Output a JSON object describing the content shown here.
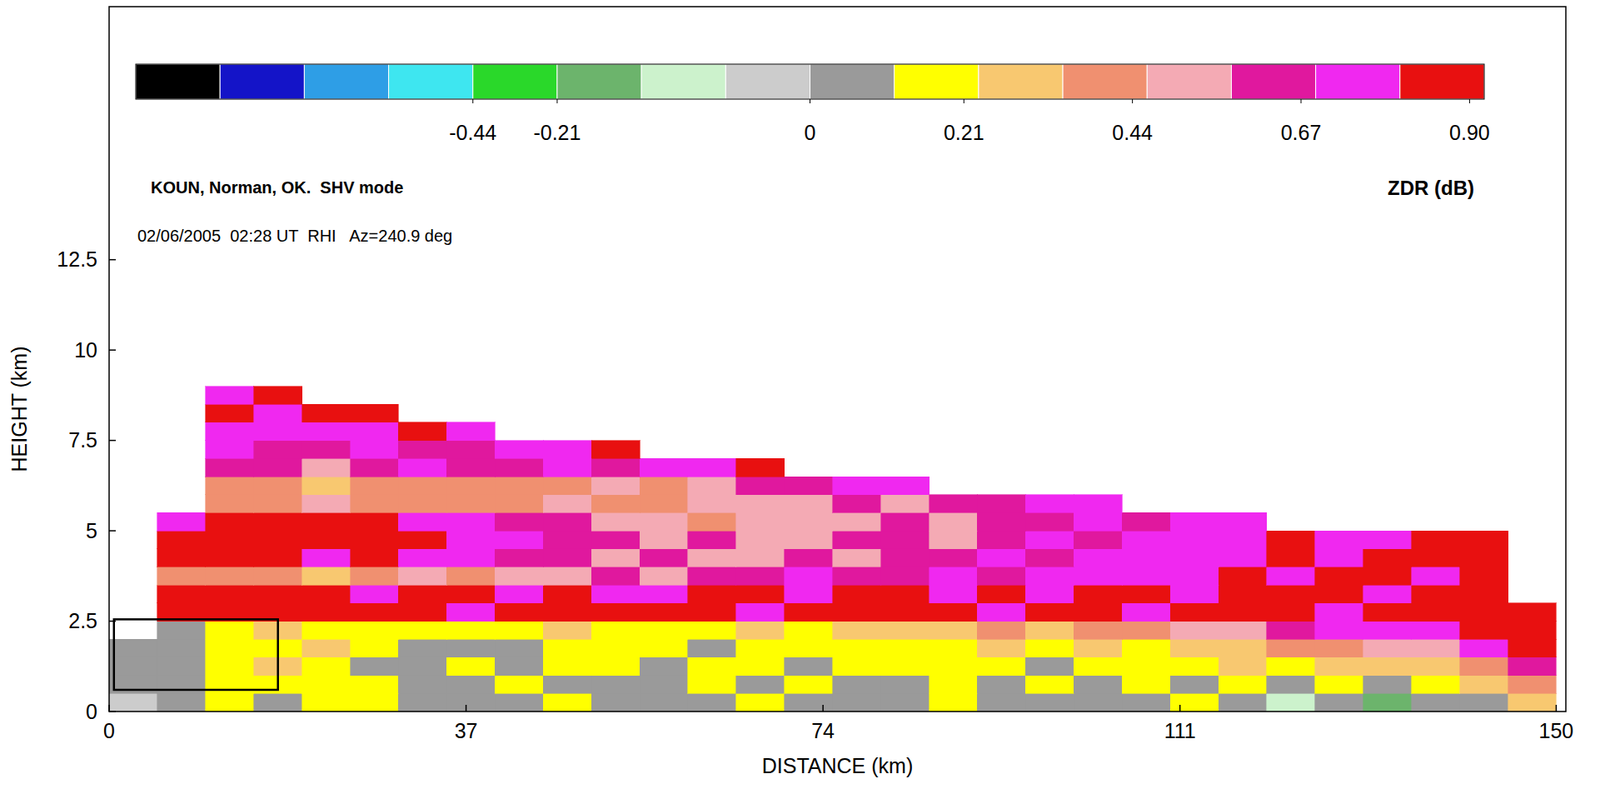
{
  "chart_data": {
    "type": "heatmap",
    "title": "KOUN, Norman, OK.  SHV mode",
    "subtitle": "02/06/2005  02:28 UT  RHI   Az=240.9 deg",
    "x_label": "DISTANCE (km)",
    "y_label": "HEIGHT (km)",
    "xlim": [
      0,
      151
    ],
    "ylim": [
      0,
      19.5
    ],
    "xticks": [
      0,
      37,
      74,
      111,
      150
    ],
    "yticks": [
      0,
      2.5,
      5,
      7.5,
      10,
      12.5
    ],
    "x_edges": [
      0,
      5,
      10,
      15,
      20,
      25,
      30,
      35,
      40,
      45,
      50,
      55,
      60,
      65,
      70,
      75,
      80,
      85,
      90,
      95,
      100,
      105,
      110,
      115,
      120,
      125,
      130,
      135,
      140,
      145,
      150
    ],
    "y_edges": [
      0,
      0.5,
      1,
      1.5,
      2,
      2.5,
      3,
      3.5,
      4,
      4.5,
      5,
      5.5,
      6,
      6.5,
      7,
      7.5,
      8,
      8.5,
      9
    ],
    "cells": [
      [
        -0.03,
        0.1,
        0.15,
        0.05,
        0.15,
        0.2,
        0.1,
        0.05,
        0.1,
        0.15,
        0.1,
        0.05,
        0.1,
        0.15,
        0.1,
        0.05,
        0.1,
        0.15,
        0.05,
        0.1,
        0.05,
        0.1,
        0.15,
        0.05,
        -0.1,
        0.0,
        -0.15,
        0.05,
        0.1,
        0.3
      ],
      [
        0.05,
        0.1,
        0.2,
        0.15,
        0.2,
        0.15,
        0.1,
        0.05,
        0.15,
        0.1,
        0.05,
        0.1,
        0.15,
        0.1,
        0.2,
        0.1,
        0.05,
        0.15,
        0.1,
        0.15,
        0.1,
        0.15,
        0.1,
        0.2,
        0.05,
        0.15,
        0.1,
        0.2,
        0.25,
        0.35
      ],
      [
        0.1,
        0.05,
        0.2,
        0.25,
        0.15,
        0.1,
        0.05,
        0.15,
        0.1,
        0.15,
        0.2,
        0.1,
        0.15,
        0.2,
        0.1,
        0.15,
        0.2,
        0.15,
        0.2,
        0.1,
        0.2,
        0.15,
        0.2,
        0.25,
        0.2,
        0.3,
        0.25,
        0.3,
        0.4,
        0.6
      ],
      [
        0.05,
        0.1,
        0.15,
        0.2,
        0.25,
        0.2,
        0.1,
        0.1,
        0.05,
        0.2,
        0.15,
        0.2,
        0.1,
        0.15,
        0.2,
        0.2,
        0.15,
        0.2,
        0.25,
        0.2,
        0.25,
        0.2,
        0.3,
        0.3,
        0.35,
        0.4,
        0.5,
        0.55,
        0.7,
        0.85
      ],
      [
        null,
        0.1,
        0.2,
        0.25,
        0.2,
        0.15,
        0.2,
        0.15,
        0.2,
        0.25,
        0.2,
        0.15,
        0.2,
        0.25,
        0.2,
        0.3,
        0.25,
        0.3,
        0.35,
        0.3,
        0.4,
        0.45,
        0.5,
        0.55,
        0.6,
        0.7,
        0.75,
        0.8,
        0.85,
        0.9
      ],
      [
        null,
        0.9,
        0.9,
        0.92,
        0.9,
        0.85,
        0.9,
        0.8,
        0.9,
        0.92,
        0.85,
        0.9,
        0.88,
        0.8,
        0.9,
        0.92,
        0.85,
        0.9,
        0.8,
        0.85,
        0.9,
        0.8,
        0.92,
        0.85,
        0.9,
        0.8,
        0.9,
        0.85,
        0.92,
        0.9
      ],
      [
        null,
        0.9,
        0.92,
        0.85,
        0.9,
        0.8,
        0.85,
        0.9,
        0.8,
        0.85,
        0.7,
        0.8,
        0.9,
        0.85,
        0.8,
        0.9,
        0.85,
        0.8,
        0.9,
        0.7,
        0.85,
        0.9,
        0.8,
        0.92,
        0.85,
        0.9,
        0.8,
        0.92,
        0.85,
        null
      ],
      [
        null,
        0.4,
        0.35,
        0.45,
        0.3,
        0.4,
        0.5,
        0.45,
        0.55,
        0.5,
        0.6,
        0.55,
        0.65,
        0.6,
        0.7,
        0.65,
        0.6,
        0.7,
        0.65,
        0.75,
        0.7,
        0.8,
        0.7,
        0.85,
        0.8,
        0.9,
        0.85,
        0.8,
        0.9,
        null
      ],
      [
        null,
        0.85,
        0.9,
        0.85,
        0.8,
        0.9,
        0.7,
        0.8,
        0.65,
        0.6,
        0.55,
        0.6,
        0.5,
        0.55,
        0.6,
        0.5,
        0.65,
        0.6,
        0.7,
        0.6,
        0.75,
        0.7,
        0.8,
        0.7,
        0.85,
        0.8,
        0.9,
        0.85,
        0.92,
        null
      ],
      [
        null,
        0.92,
        0.9,
        0.92,
        0.85,
        0.9,
        0.85,
        0.8,
        0.7,
        0.65,
        0.6,
        0.55,
        0.6,
        0.5,
        0.55,
        0.6,
        0.65,
        0.55,
        0.6,
        0.7,
        0.65,
        0.75,
        0.7,
        0.8,
        0.85,
        0.75,
        0.8,
        0.9,
        0.85,
        null
      ],
      [
        null,
        0.7,
        0.85,
        0.9,
        0.92,
        0.85,
        0.8,
        0.75,
        0.65,
        0.6,
        0.5,
        0.55,
        0.45,
        0.5,
        0.55,
        0.5,
        0.6,
        0.55,
        0.65,
        0.6,
        0.7,
        0.65,
        0.75,
        0.7,
        null,
        null,
        null,
        null,
        null,
        null
      ],
      [
        null,
        null,
        0.45,
        0.4,
        0.5,
        0.45,
        0.35,
        0.4,
        0.45,
        0.5,
        0.4,
        0.45,
        0.5,
        0.55,
        0.5,
        0.6,
        0.55,
        0.65,
        0.6,
        0.7,
        0.75,
        null,
        null,
        null,
        null,
        null,
        null,
        null,
        null,
        null
      ],
      [
        null,
        null,
        0.35,
        0.4,
        0.3,
        0.45,
        0.4,
        0.35,
        0.45,
        0.4,
        0.5,
        0.45,
        0.55,
        0.6,
        0.65,
        0.7,
        0.75,
        null,
        null,
        null,
        null,
        null,
        null,
        null,
        null,
        null,
        null,
        null,
        null,
        null
      ],
      [
        null,
        null,
        0.6,
        0.65,
        0.55,
        0.6,
        0.7,
        0.65,
        0.6,
        0.7,
        0.65,
        0.7,
        0.8,
        0.85,
        null,
        null,
        null,
        null,
        null,
        null,
        null,
        null,
        null,
        null,
        null,
        null,
        null,
        null,
        null,
        null
      ],
      [
        null,
        null,
        0.7,
        0.6,
        0.65,
        0.7,
        0.6,
        0.65,
        0.75,
        0.8,
        0.85,
        null,
        null,
        null,
        null,
        null,
        null,
        null,
        null,
        null,
        null,
        null,
        null,
        null,
        null,
        null,
        null,
        null,
        null,
        null
      ],
      [
        null,
        null,
        0.75,
        0.7,
        0.8,
        0.7,
        0.85,
        0.8,
        null,
        null,
        null,
        null,
        null,
        null,
        null,
        null,
        null,
        null,
        null,
        null,
        null,
        null,
        null,
        null,
        null,
        null,
        null,
        null,
        null,
        null
      ],
      [
        null,
        null,
        0.85,
        0.8,
        0.9,
        0.85,
        null,
        null,
        null,
        null,
        null,
        null,
        null,
        null,
        null,
        null,
        null,
        null,
        null,
        null,
        null,
        null,
        null,
        null,
        null,
        null,
        null,
        null,
        null,
        null
      ],
      [
        null,
        null,
        0.8,
        0.9,
        null,
        null,
        null,
        null,
        null,
        null,
        null,
        null,
        null,
        null,
        null,
        null,
        null,
        null,
        null,
        null,
        null,
        null,
        null,
        null,
        null,
        null,
        null,
        null,
        null,
        null
      ]
    ],
    "color_bar": {
      "label": "ZDR (dB)",
      "edges": [
        -1.36,
        -1.13,
        -0.9,
        -0.67,
        -0.44,
        -0.21,
        -0.14,
        -0.07,
        0,
        0.115,
        0.23,
        0.345,
        0.46,
        0.575,
        0.69,
        0.805,
        0.92
      ],
      "colors": [
        "#000000",
        "#1414c8",
        "#2e9ee6",
        "#3ee6f0",
        "#2ad82a",
        "#6cb46c",
        "#ccf2cc",
        "#cccccc",
        "#9a9a9a",
        "#ffff00",
        "#f8c870",
        "#f09070",
        "#f4aab4",
        "#e0189e",
        "#f028f0",
        "#e81010"
      ],
      "ticks": [
        -0.44,
        -0.21,
        0,
        0.21,
        0.44,
        0.67,
        {
          "value": 0.9,
          "label": "0.90"
        }
      ]
    },
    "highlight_box": {
      "x": [
        0.5,
        17.5
      ],
      "y": [
        0.6,
        2.55
      ]
    }
  }
}
